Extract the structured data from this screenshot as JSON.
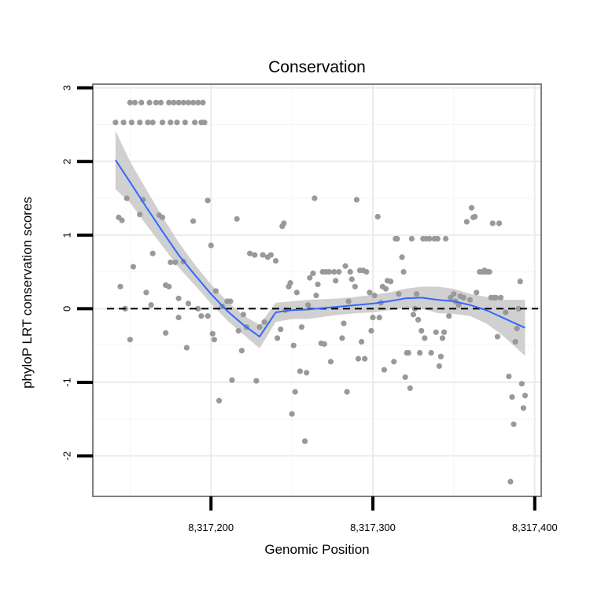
{
  "chart_data": {
    "type": "scatter",
    "title": "Conservation",
    "xlabel": "Genomic Position",
    "ylabel": "phyloP LRT conservation scores",
    "xlim": [
      8317127,
      8317404
    ],
    "ylim": [
      -2.55,
      3.05
    ],
    "xticks": [
      8317200,
      8317300,
      8317400
    ],
    "xtick_labels": [
      "8,317,200",
      "8,317,300",
      "8,317,400"
    ],
    "yticks": [
      -2,
      -1,
      0,
      1,
      2,
      3
    ],
    "ytick_labels": [
      "-2",
      "-1",
      "0",
      "1",
      "2",
      "3"
    ],
    "grid": true,
    "reference_line": {
      "y": 0,
      "style": "dashed"
    },
    "colors": {
      "points": "#999999",
      "smooth": "#3366ff",
      "band": "#c8c8c8",
      "grid": "#ebebeb",
      "frame": "#7f7f7f"
    },
    "points": [
      [
        8317141,
        2.53
      ],
      [
        8317146,
        2.53
      ],
      [
        8317151,
        2.53
      ],
      [
        8317156,
        2.53
      ],
      [
        8317161,
        2.53
      ],
      [
        8317164,
        2.53
      ],
      [
        8317170,
        2.53
      ],
      [
        8317175,
        2.53
      ],
      [
        8317179,
        2.53
      ],
      [
        8317184,
        2.53
      ],
      [
        8317190,
        2.53
      ],
      [
        8317194,
        2.53
      ],
      [
        8317196,
        2.53
      ],
      [
        8317150,
        2.8
      ],
      [
        8317153,
        2.8
      ],
      [
        8317157,
        2.8
      ],
      [
        8317162,
        2.8
      ],
      [
        8317166,
        2.8
      ],
      [
        8317169,
        2.8
      ],
      [
        8317174,
        2.8
      ],
      [
        8317177,
        2.8
      ],
      [
        8317180,
        2.8
      ],
      [
        8317183,
        2.8
      ],
      [
        8317186,
        2.8
      ],
      [
        8317189,
        2.8
      ],
      [
        8317192,
        2.8
      ],
      [
        8317195,
        2.8
      ],
      [
        8317143,
        1.24
      ],
      [
        8317145,
        1.2
      ],
      [
        8317148,
        1.5
      ],
      [
        8317152,
        0.57
      ],
      [
        8317156,
        1.28
      ],
      [
        8317158,
        1.48
      ],
      [
        8317160,
        0.22
      ],
      [
        8317164,
        0.75
      ],
      [
        8317168,
        1.27
      ],
      [
        8317170,
        1.24
      ],
      [
        8317172,
        0.32
      ],
      [
        8317174,
        0.3
      ],
      [
        8317175,
        0.63
      ],
      [
        8317178,
        0.63
      ],
      [
        8317180,
        0.14
      ],
      [
        8317183,
        0.64
      ],
      [
        8317186,
        0.07
      ],
      [
        8317189,
        1.19
      ],
      [
        8317192,
        0.0
      ],
      [
        8317198,
        1.47
      ],
      [
        8317200,
        0.86
      ],
      [
        8317144,
        0.3
      ],
      [
        8317147,
        0.0
      ],
      [
        8317150,
        -0.42
      ],
      [
        8317163,
        0.05
      ],
      [
        8317172,
        -0.33
      ],
      [
        8317180,
        -0.12
      ],
      [
        8317185,
        -0.53
      ],
      [
        8317194,
        -0.1
      ],
      [
        8317198,
        -0.1
      ],
      [
        8317201,
        -0.34
      ],
      [
        8317202,
        -0.42
      ],
      [
        8317203,
        0.24
      ],
      [
        8317205,
        -1.25
      ],
      [
        8317207,
        0.03
      ],
      [
        8317210,
        0.1
      ],
      [
        8317212,
        0.1
      ],
      [
        8317213,
        -0.97
      ],
      [
        8317216,
        1.22
      ],
      [
        8317217,
        -0.3
      ],
      [
        8317219,
        -0.57
      ],
      [
        8317220,
        -0.08
      ],
      [
        8317222,
        -0.25
      ],
      [
        8317224,
        0.75
      ],
      [
        8317227,
        0.73
      ],
      [
        8317228,
        -0.98
      ],
      [
        8317230,
        -0.25
      ],
      [
        8317232,
        0.73
      ],
      [
        8317233,
        -0.18
      ],
      [
        8317235,
        0.7
      ],
      [
        8317237,
        0.73
      ],
      [
        8317240,
        0.65
      ],
      [
        8317241,
        -0.4
      ],
      [
        8317243,
        -0.28
      ],
      [
        8317244,
        1.12
      ],
      [
        8317245,
        1.16
      ],
      [
        8317246,
        -0.02
      ],
      [
        8317248,
        0.3
      ],
      [
        8317249,
        0.35
      ],
      [
        8317250,
        -1.43
      ],
      [
        8317251,
        -0.5
      ],
      [
        8317252,
        -1.13
      ],
      [
        8317253,
        0.22
      ],
      [
        8317255,
        -0.85
      ],
      [
        8317256,
        -0.25
      ],
      [
        8317258,
        -1.8
      ],
      [
        8317259,
        -0.87
      ],
      [
        8317260,
        0.05
      ],
      [
        8317261,
        0.42
      ],
      [
        8317263,
        0.48
      ],
      [
        8317264,
        1.5
      ],
      [
        8317265,
        0.18
      ],
      [
        8317266,
        0.33
      ],
      [
        8317268,
        -0.47
      ],
      [
        8317269,
        0.5
      ],
      [
        8317270,
        -0.48
      ],
      [
        8317271,
        0.5
      ],
      [
        8317273,
        0.5
      ],
      [
        8317274,
        -0.72
      ],
      [
        8317276,
        0.5
      ],
      [
        8317277,
        0.38
      ],
      [
        8317279,
        0.5
      ],
      [
        8317281,
        -0.4
      ],
      [
        8317282,
        -0.2
      ],
      [
        8317283,
        0.58
      ],
      [
        8317284,
        -1.13
      ],
      [
        8317285,
        0.1
      ],
      [
        8317286,
        0.5
      ],
      [
        8317287,
        0.4
      ],
      [
        8317289,
        0.3
      ],
      [
        8317290,
        1.48
      ],
      [
        8317291,
        -0.68
      ],
      [
        8317292,
        0.52
      ],
      [
        8317293,
        -0.45
      ],
      [
        8317294,
        0.52
      ],
      [
        8317295,
        -0.68
      ],
      [
        8317296,
        0.5
      ],
      [
        8317298,
        0.22
      ],
      [
        8317299,
        -0.3
      ],
      [
        8317300,
        -0.12
      ],
      [
        8317301,
        0.18
      ],
      [
        8317303,
        1.25
      ],
      [
        8317304,
        -0.12
      ],
      [
        8317305,
        0.08
      ],
      [
        8317306,
        0.3
      ],
      [
        8317307,
        -0.83
      ],
      [
        8317308,
        0.27
      ],
      [
        8317309,
        0.38
      ],
      [
        8317311,
        0.37
      ],
      [
        8317313,
        -0.72
      ],
      [
        8317314,
        0.95
      ],
      [
        8317315,
        0.95
      ],
      [
        8317316,
        0.2
      ],
      [
        8317318,
        0.7
      ],
      [
        8317319,
        0.5
      ],
      [
        8317320,
        -0.93
      ],
      [
        8317321,
        -0.6
      ],
      [
        8317322,
        -0.6
      ],
      [
        8317323,
        -1.08
      ],
      [
        8317324,
        0.95
      ],
      [
        8317325,
        -0.08
      ],
      [
        8317326,
        0.0
      ],
      [
        8317327,
        0.2
      ],
      [
        8317328,
        -0.15
      ],
      [
        8317329,
        -0.6
      ],
      [
        8317330,
        -0.3
      ],
      [
        8317331,
        0.95
      ],
      [
        8317332,
        -0.4
      ],
      [
        8317333,
        0.95
      ],
      [
        8317335,
        0.95
      ],
      [
        8317336,
        -0.6
      ],
      [
        8317338,
        0.95
      ],
      [
        8317339,
        -0.32
      ],
      [
        8317340,
        0.95
      ],
      [
        8317341,
        -0.78
      ],
      [
        8317342,
        -0.65
      ],
      [
        8317343,
        -0.4
      ],
      [
        8317344,
        -0.32
      ],
      [
        8317345,
        0.95
      ],
      [
        8317347,
        -0.1
      ],
      [
        8317348,
        0.15
      ],
      [
        8317350,
        0.2
      ],
      [
        8317351,
        0.1
      ],
      [
        8317353,
        0.05
      ],
      [
        8317354,
        0.17
      ],
      [
        8317356,
        0.15
      ],
      [
        8317358,
        1.18
      ],
      [
        8317360,
        0.12
      ],
      [
        8317361,
        1.37
      ],
      [
        8317362,
        1.24
      ],
      [
        8317363,
        1.25
      ],
      [
        8317364,
        0.22
      ],
      [
        8317366,
        0.5
      ],
      [
        8317368,
        0.5
      ],
      [
        8317369,
        0.52
      ],
      [
        8317370,
        0.5
      ],
      [
        8317371,
        0.5
      ],
      [
        8317372,
        0.5
      ],
      [
        8317373,
        0.15
      ],
      [
        8317374,
        1.16
      ],
      [
        8317375,
        0.15
      ],
      [
        8317376,
        0.15
      ],
      [
        8317378,
        1.16
      ],
      [
        8317379,
        0.15
      ],
      [
        8317377,
        -0.38
      ],
      [
        8317382,
        -0.05
      ],
      [
        8317384,
        -0.92
      ],
      [
        8317385,
        -2.35
      ],
      [
        8317386,
        -1.2
      ],
      [
        8317387,
        -1.57
      ],
      [
        8317388,
        -0.45
      ],
      [
        8317389,
        -0.27
      ],
      [
        8317390,
        0.0
      ],
      [
        8317391,
        0.37
      ],
      [
        8317392,
        -1.02
      ],
      [
        8317393,
        -1.35
      ],
      [
        8317394,
        -1.18
      ]
    ],
    "smooth_line": [
      [
        8317141,
        2.02
      ],
      [
        8317150,
        1.72
      ],
      [
        8317160,
        1.38
      ],
      [
        8317170,
        1.05
      ],
      [
        8317180,
        0.73
      ],
      [
        8317190,
        0.46
      ],
      [
        8317200,
        0.2
      ],
      [
        8317210,
        -0.03
      ],
      [
        8317220,
        -0.22
      ],
      [
        8317230,
        -0.38
      ],
      [
        8317240,
        -0.05
      ],
      [
        8317250,
        -0.02
      ],
      [
        8317260,
        -0.01
      ],
      [
        8317270,
        0.01
      ],
      [
        8317280,
        0.03
      ],
      [
        8317290,
        0.05
      ],
      [
        8317300,
        0.07
      ],
      [
        8317310,
        0.1
      ],
      [
        8317320,
        0.14
      ],
      [
        8317330,
        0.15
      ],
      [
        8317340,
        0.12
      ],
      [
        8317350,
        0.1
      ],
      [
        8317360,
        0.05
      ],
      [
        8317370,
        -0.02
      ],
      [
        8317380,
        -0.12
      ],
      [
        8317394,
        -0.26
      ]
    ],
    "band_upper": [
      [
        8317141,
        2.42
      ],
      [
        8317150,
        2.0
      ],
      [
        8317160,
        1.62
      ],
      [
        8317170,
        1.25
      ],
      [
        8317180,
        0.9
      ],
      [
        8317190,
        0.6
      ],
      [
        8317200,
        0.33
      ],
      [
        8317210,
        0.1
      ],
      [
        8317220,
        -0.09
      ],
      [
        8317230,
        -0.22
      ],
      [
        8317240,
        0.08
      ],
      [
        8317250,
        0.1
      ],
      [
        8317260,
        0.12
      ],
      [
        8317270,
        0.13
      ],
      [
        8317280,
        0.14
      ],
      [
        8317290,
        0.16
      ],
      [
        8317300,
        0.19
      ],
      [
        8317310,
        0.22
      ],
      [
        8317320,
        0.27
      ],
      [
        8317330,
        0.3
      ],
      [
        8317340,
        0.3
      ],
      [
        8317350,
        0.27
      ],
      [
        8317360,
        0.2
      ],
      [
        8317370,
        0.16
      ],
      [
        8317380,
        0.12
      ],
      [
        8317394,
        0.12
      ]
    ],
    "band_lower": [
      [
        8317141,
        1.62
      ],
      [
        8317150,
        1.44
      ],
      [
        8317160,
        1.14
      ],
      [
        8317170,
        0.85
      ],
      [
        8317180,
        0.56
      ],
      [
        8317190,
        0.32
      ],
      [
        8317200,
        0.07
      ],
      [
        8317210,
        -0.16
      ],
      [
        8317220,
        -0.35
      ],
      [
        8317230,
        -0.54
      ],
      [
        8317240,
        -0.18
      ],
      [
        8317250,
        -0.14
      ],
      [
        8317260,
        -0.14
      ],
      [
        8317270,
        -0.11
      ],
      [
        8317280,
        -0.08
      ],
      [
        8317290,
        -0.06
      ],
      [
        8317300,
        -0.05
      ],
      [
        8317310,
        -0.02
      ],
      [
        8317320,
        0.01
      ],
      [
        8317330,
        0.0
      ],
      [
        8317340,
        -0.06
      ],
      [
        8317350,
        -0.07
      ],
      [
        8317360,
        -0.1
      ],
      [
        8317370,
        -0.2
      ],
      [
        8317380,
        -0.36
      ],
      [
        8317394,
        -0.64
      ]
    ]
  }
}
